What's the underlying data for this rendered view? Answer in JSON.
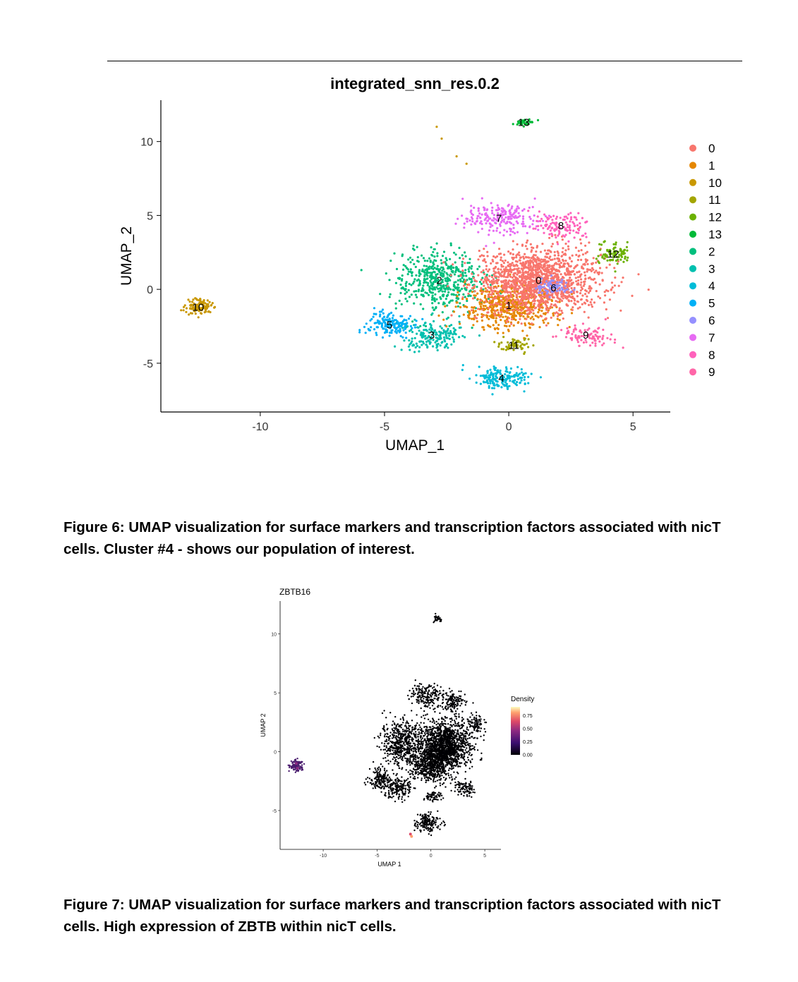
{
  "figure6": {
    "caption": "Figure 6: UMAP visualization for surface markers and transcription factors associated with nicT cells. Cluster #4 - shows our population of interest."
  },
  "figure7": {
    "caption": "Figure 7: UMAP visualization for surface markers and transcription factors associated with nicT cells. High expression of ZBTB within nicT cells."
  },
  "chart_data": [
    {
      "type": "scatter",
      "title": "integrated_snn_res.0.2",
      "xlabel": "UMAP_1",
      "ylabel": "UMAP_2",
      "xlim": [
        -14,
        6.5
      ],
      "ylim": [
        -8.3,
        12.8
      ],
      "xticks": [
        -10,
        -5,
        0,
        5
      ],
      "yticks": [
        -5,
        0,
        5,
        10
      ],
      "grid": false,
      "legend_position": "right",
      "series": [
        {
          "name": "0",
          "color": "#F8766D",
          "center": [
            1.2,
            0.6
          ]
        },
        {
          "name": "1",
          "color": "#E58700",
          "center": [
            0.0,
            -1.1
          ]
        },
        {
          "name": "10",
          "color": "#C99800",
          "center": [
            -12.5,
            -1.2
          ]
        },
        {
          "name": "11",
          "color": "#A3A500",
          "center": [
            0.2,
            -3.8
          ]
        },
        {
          "name": "12",
          "color": "#6BB100",
          "center": [
            4.2,
            2.4
          ]
        },
        {
          "name": "13",
          "color": "#00BA38",
          "center": [
            0.6,
            11.3
          ]
        },
        {
          "name": "2",
          "color": "#00BF7D",
          "center": [
            -2.8,
            0.6
          ]
        },
        {
          "name": "3",
          "color": "#00C0AF",
          "center": [
            -3.1,
            -3.1
          ]
        },
        {
          "name": "4",
          "color": "#00BCD8",
          "center": [
            -0.3,
            -6.0
          ]
        },
        {
          "name": "5",
          "color": "#00B0F6",
          "center": [
            -4.8,
            -2.4
          ]
        },
        {
          "name": "6",
          "color": "#9590FF",
          "center": [
            1.8,
            0.1
          ]
        },
        {
          "name": "7",
          "color": "#E76BF3",
          "center": [
            -0.4,
            4.8
          ]
        },
        {
          "name": "8",
          "color": "#FF62BC",
          "center": [
            2.1,
            4.3
          ]
        },
        {
          "name": "9",
          "color": "#FF66A8",
          "center": [
            3.1,
            -3.1
          ]
        }
      ]
    },
    {
      "type": "scatter",
      "title": "ZBTB16",
      "xlabel": "UMAP 1",
      "ylabel": "UMAP 2",
      "xlim": [
        -14,
        6.5
      ],
      "ylim": [
        -8.3,
        12.8
      ],
      "xticks": [
        -10,
        -5,
        0,
        5
      ],
      "yticks": [
        -5,
        0,
        5,
        10
      ],
      "legend_title": "Density",
      "legend_ticks": [
        "0.75",
        "0.50",
        "0.25",
        "0.00"
      ],
      "legend_position": "right",
      "colorscale": [
        "#000004",
        "#3B0F70",
        "#8C2981",
        "#DE4968",
        "#FE9F6D",
        "#FCFDBF"
      ]
    }
  ]
}
